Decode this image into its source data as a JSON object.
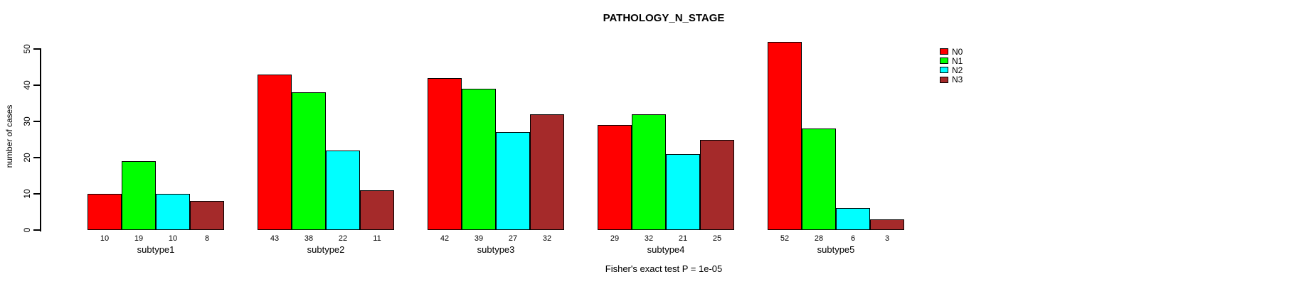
{
  "chart_data": {
    "type": "bar",
    "grouped": true,
    "title": "PATHOLOGY_N_STAGE",
    "xlabel": "",
    "ylabel": "number of cases",
    "annotation": "Fisher's exact test P = 1e-05",
    "categories": [
      "subtype1",
      "subtype2",
      "subtype3",
      "subtype4",
      "subtype5"
    ],
    "series": [
      {
        "name": "N0",
        "color": "#FF0000",
        "values": [
          10,
          43,
          42,
          29,
          52
        ]
      },
      {
        "name": "N1",
        "color": "#00FF00",
        "values": [
          19,
          38,
          39,
          32,
          28
        ]
      },
      {
        "name": "N2",
        "color": "#00FFFF",
        "values": [
          10,
          22,
          27,
          21,
          6
        ]
      },
      {
        "name": "N3",
        "color": "#A52A2A",
        "values": [
          8,
          11,
          32,
          25,
          3
        ]
      }
    ],
    "yticks": [
      0,
      10,
      20,
      30,
      40,
      50
    ],
    "ylim": [
      0,
      50
    ],
    "bar_value_labels_shown": true,
    "grid": false,
    "legend_position": "right",
    "background_color": "#FFFFFF",
    "axis_color": "#000000"
  }
}
